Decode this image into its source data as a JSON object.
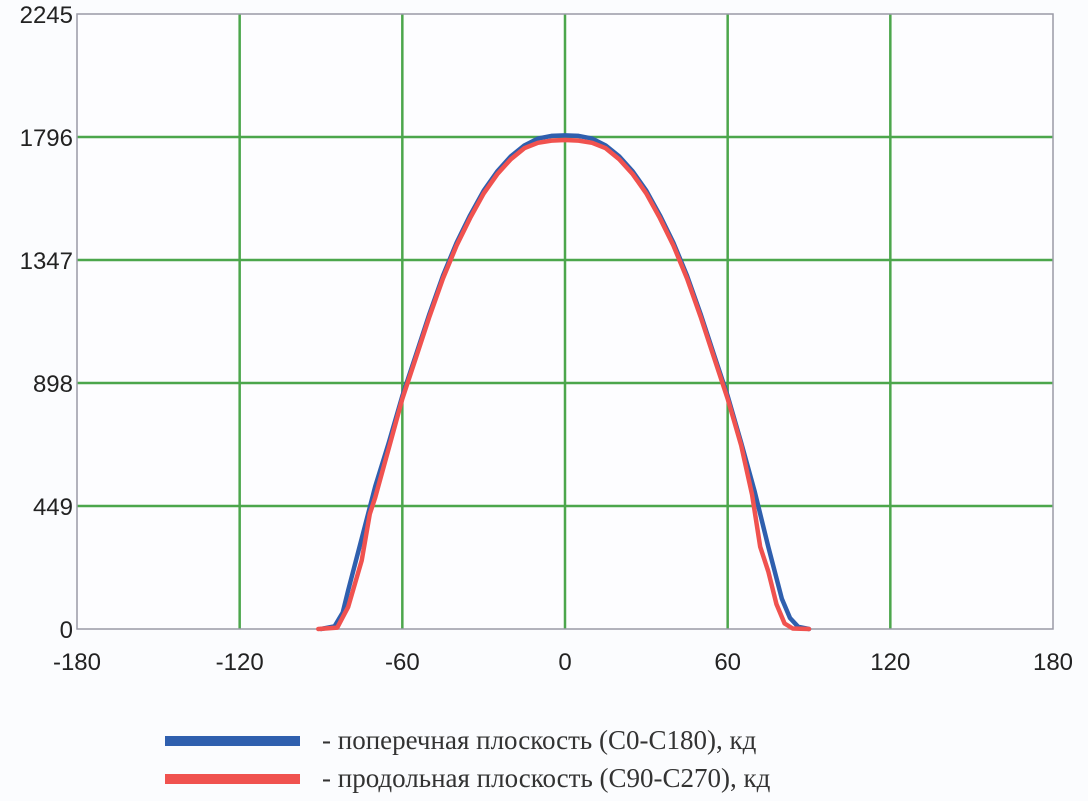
{
  "chart_data": {
    "type": "line",
    "title": "",
    "xlabel": "",
    "ylabel": "",
    "xlim": [
      -180,
      180
    ],
    "ylim": [
      0,
      2245
    ],
    "x_ticks": [
      "-180",
      "-120",
      "-60",
      "0",
      "60",
      "120",
      "180"
    ],
    "y_ticks": [
      "0",
      "449",
      "898",
      "1347",
      "1796",
      "2245"
    ],
    "x_tick_values": [
      -180,
      -120,
      -60,
      0,
      60,
      120,
      180
    ],
    "y_tick_values": [
      0,
      449,
      898,
      1347,
      1796,
      2245
    ],
    "grid": true,
    "legend_position": "bottom",
    "series": [
      {
        "name": "- поперечная плоскость (C0-C180), кд",
        "color": "#2f5fae",
        "points": [
          [
            -90,
            0
          ],
          [
            -85,
            10
          ],
          [
            -82,
            60
          ],
          [
            -80,
            140
          ],
          [
            -75,
            330
          ],
          [
            -70,
            520
          ],
          [
            -65,
            680
          ],
          [
            -60,
            850
          ],
          [
            -55,
            1000
          ],
          [
            -50,
            1150
          ],
          [
            -45,
            1290
          ],
          [
            -40,
            1410
          ],
          [
            -35,
            1510
          ],
          [
            -30,
            1600
          ],
          [
            -25,
            1670
          ],
          [
            -20,
            1725
          ],
          [
            -15,
            1765
          ],
          [
            -10,
            1790
          ],
          [
            -5,
            1800
          ],
          [
            0,
            1802
          ],
          [
            5,
            1800
          ],
          [
            10,
            1790
          ],
          [
            15,
            1765
          ],
          [
            20,
            1725
          ],
          [
            25,
            1670
          ],
          [
            30,
            1600
          ],
          [
            35,
            1510
          ],
          [
            40,
            1410
          ],
          [
            45,
            1290
          ],
          [
            50,
            1150
          ],
          [
            55,
            1000
          ],
          [
            60,
            850
          ],
          [
            65,
            680
          ],
          [
            70,
            500
          ],
          [
            75,
            300
          ],
          [
            80,
            110
          ],
          [
            83,
            40
          ],
          [
            86,
            8
          ],
          [
            90,
            0
          ]
        ]
      },
      {
        "name": "- продольная плоскость (C90-C270), кд",
        "color": "#f0524f",
        "points": [
          [
            -91,
            0
          ],
          [
            -84,
            5
          ],
          [
            -80,
            80
          ],
          [
            -75,
            250
          ],
          [
            -72,
            420
          ],
          [
            -70,
            480
          ],
          [
            -65,
            660
          ],
          [
            -60,
            840
          ],
          [
            -55,
            990
          ],
          [
            -50,
            1140
          ],
          [
            -45,
            1280
          ],
          [
            -40,
            1400
          ],
          [
            -35,
            1500
          ],
          [
            -30,
            1590
          ],
          [
            -25,
            1660
          ],
          [
            -20,
            1715
          ],
          [
            -15,
            1755
          ],
          [
            -10,
            1775
          ],
          [
            -5,
            1783
          ],
          [
            0,
            1785
          ],
          [
            5,
            1783
          ],
          [
            10,
            1775
          ],
          [
            15,
            1755
          ],
          [
            20,
            1715
          ],
          [
            25,
            1660
          ],
          [
            30,
            1590
          ],
          [
            35,
            1500
          ],
          [
            40,
            1400
          ],
          [
            45,
            1280
          ],
          [
            50,
            1140
          ],
          [
            55,
            990
          ],
          [
            60,
            840
          ],
          [
            65,
            670
          ],
          [
            69,
            490
          ],
          [
            72,
            300
          ],
          [
            75,
            210
          ],
          [
            78,
            90
          ],
          [
            81,
            20
          ],
          [
            84,
            2
          ],
          [
            90,
            0
          ]
        ]
      }
    ]
  }
}
